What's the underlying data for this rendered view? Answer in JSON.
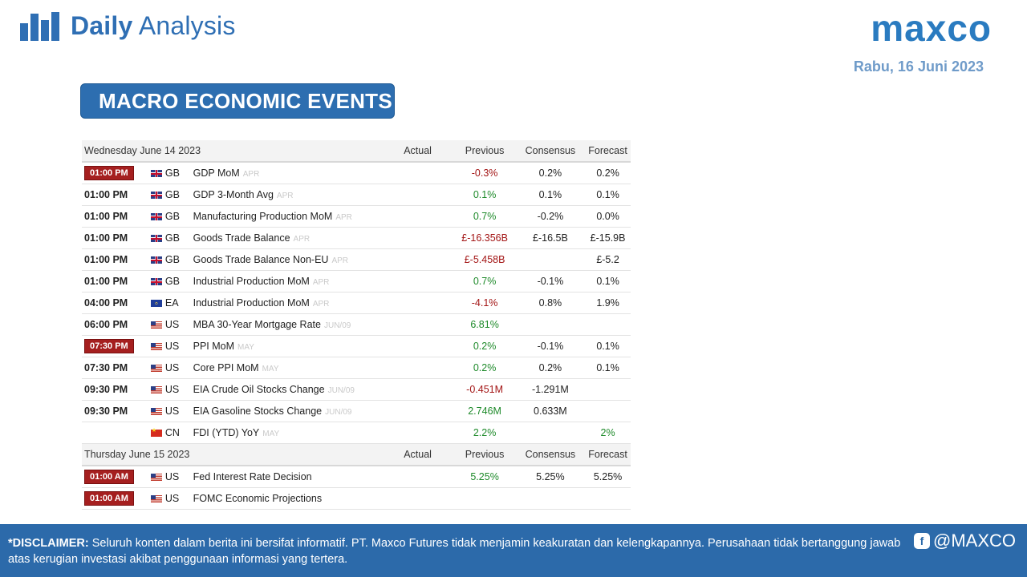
{
  "header": {
    "brand_bold": "Daily",
    "brand_light": "Analysis",
    "logo": "maxco",
    "date": "Rabu,  16 Juni 2023"
  },
  "section_title": "MACRO ECONOMIC EVENTS",
  "columns": {
    "actual": "Actual",
    "previous": "Previous",
    "consensus": "Consensus",
    "forecast": "Forecast"
  },
  "days": [
    {
      "label": "Wednesday June 14 2023",
      "events": [
        {
          "time": "01:00 PM",
          "highlight": true,
          "country": "GB",
          "event": "GDP MoM",
          "period": "APR",
          "actual": "",
          "previous": "-0.3%",
          "prev_trend": "neg",
          "consensus": "0.2%",
          "forecast": "0.2%",
          "fc_trend": ""
        },
        {
          "time": "01:00 PM",
          "highlight": false,
          "country": "GB",
          "event": "GDP 3-Month Avg",
          "period": "APR",
          "actual": "",
          "previous": "0.1%",
          "prev_trend": "pos",
          "consensus": "0.1%",
          "forecast": "0.1%",
          "fc_trend": ""
        },
        {
          "time": "01:00 PM",
          "highlight": false,
          "country": "GB",
          "event": "Manufacturing Production MoM",
          "period": "APR",
          "actual": "",
          "previous": "0.7%",
          "prev_trend": "pos",
          "consensus": "-0.2%",
          "forecast": "0.0%",
          "fc_trend": ""
        },
        {
          "time": "01:00 PM",
          "highlight": false,
          "country": "GB",
          "event": "Goods Trade Balance",
          "period": "APR",
          "actual": "",
          "previous": "£-16.356B",
          "prev_trend": "neg",
          "consensus": "£-16.5B",
          "forecast": "£-15.9B",
          "fc_trend": ""
        },
        {
          "time": "01:00 PM",
          "highlight": false,
          "country": "GB",
          "event": "Goods Trade Balance Non-EU",
          "period": "APR",
          "actual": "",
          "previous": "£-5.458B",
          "prev_trend": "neg",
          "consensus": "",
          "forecast": "£-5.2",
          "fc_trend": ""
        },
        {
          "time": "01:00 PM",
          "highlight": false,
          "country": "GB",
          "event": "Industrial Production MoM",
          "period": "APR",
          "actual": "",
          "previous": "0.7%",
          "prev_trend": "pos",
          "consensus": "-0.1%",
          "forecast": "0.1%",
          "fc_trend": ""
        },
        {
          "time": "04:00 PM",
          "highlight": false,
          "country": "EA",
          "event": "Industrial Production MoM",
          "period": "APR",
          "actual": "",
          "previous": "-4.1%",
          "prev_trend": "neg",
          "consensus": "0.8%",
          "forecast": "1.9%",
          "fc_trend": ""
        },
        {
          "time": "06:00 PM",
          "highlight": false,
          "country": "US",
          "event": "MBA 30-Year Mortgage Rate",
          "period": "JUN/09",
          "actual": "",
          "previous": "6.81%",
          "prev_trend": "pos",
          "consensus": "",
          "forecast": "",
          "fc_trend": ""
        },
        {
          "time": "07:30 PM",
          "highlight": true,
          "country": "US",
          "event": "PPI MoM",
          "period": "MAY",
          "actual": "",
          "previous": "0.2%",
          "prev_trend": "pos",
          "consensus": "-0.1%",
          "forecast": "0.1%",
          "fc_trend": ""
        },
        {
          "time": "07:30 PM",
          "highlight": false,
          "country": "US",
          "event": "Core PPI MoM",
          "period": "MAY",
          "actual": "",
          "previous": "0.2%",
          "prev_trend": "pos",
          "consensus": "0.2%",
          "forecast": "0.1%",
          "fc_trend": ""
        },
        {
          "time": "09:30 PM",
          "highlight": false,
          "country": "US",
          "event": "EIA Crude Oil Stocks Change",
          "period": "JUN/09",
          "actual": "",
          "previous": "-0.451M",
          "prev_trend": "neg",
          "consensus": "-1.291M",
          "forecast": "",
          "fc_trend": ""
        },
        {
          "time": "09:30 PM",
          "highlight": false,
          "country": "US",
          "event": "EIA Gasoline Stocks Change",
          "period": "JUN/09",
          "actual": "",
          "previous": "2.746M",
          "prev_trend": "pos",
          "consensus": "0.633M",
          "forecast": "",
          "fc_trend": ""
        },
        {
          "time": "",
          "highlight": false,
          "country": "CN",
          "event": "FDI (YTD) YoY",
          "period": "MAY",
          "actual": "",
          "previous": "2.2%",
          "prev_trend": "pos",
          "consensus": "",
          "forecast": "2%",
          "fc_trend": "pos"
        }
      ]
    },
    {
      "label": "Thursday June 15 2023",
      "events": [
        {
          "time": "01:00 AM",
          "highlight": true,
          "country": "US",
          "event": "Fed Interest Rate Decision",
          "period": "",
          "actual": "",
          "previous": "5.25%",
          "prev_trend": "pos",
          "consensus": "5.25%",
          "forecast": "5.25%",
          "fc_trend": ""
        },
        {
          "time": "01:00 AM",
          "highlight": true,
          "country": "US",
          "event": "FOMC Economic Projections",
          "period": "",
          "actual": "",
          "previous": "",
          "prev_trend": "",
          "consensus": "",
          "forecast": "",
          "fc_trend": ""
        }
      ]
    }
  ],
  "footer": {
    "disclaimer_label": "*DISCLAIMER:",
    "disclaimer_text": " Seluruh konten dalam berita ini bersifat informatif. PT. Maxco Futures tidak menjamin keakuratan dan kelengkapannya. Perusahaan tidak bertanggung jawab atas kerugian investasi akibat penggunaan informasi yang tertera.",
    "social_handle": "@MAXCO"
  }
}
